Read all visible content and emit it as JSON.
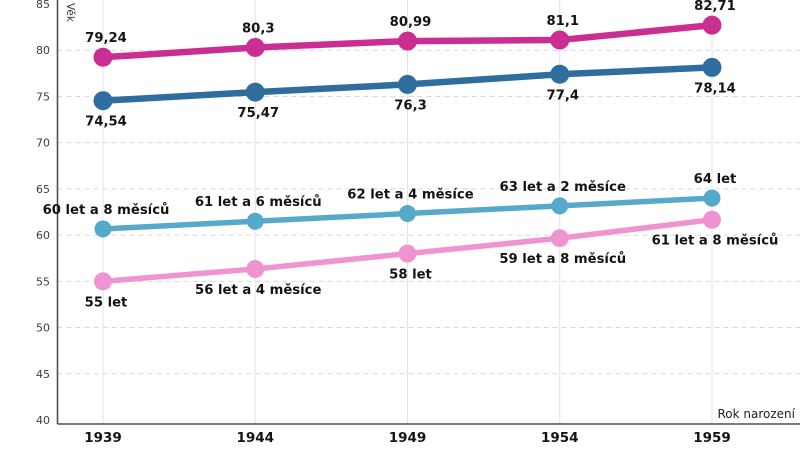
{
  "page": {
    "background_color": "#ffffff"
  },
  "chart_data": {
    "type": "line",
    "title": "",
    "xlabel": "Rok narození",
    "ylabel": "Věk",
    "x_categories": [
      "1939",
      "1944",
      "1949",
      "1954",
      "1959"
    ],
    "x_values": [
      1939,
      1944,
      1949,
      1954,
      1959
    ],
    "yticks": [
      40,
      45,
      50,
      55,
      60,
      65,
      70,
      75,
      80,
      85
    ],
    "ylim": [
      40,
      85.9
    ],
    "grid": {
      "horizontal": "dashed",
      "vertical": "solid"
    },
    "legend_position": "none",
    "series": [
      {
        "id": "magenta",
        "color": "#cb2e92",
        "values": [
          79.24,
          80.3,
          80.99,
          81.1,
          82.71
        ],
        "point_labels": [
          "79,24",
          "80,3",
          "80,99",
          "81,1",
          "82,71"
        ],
        "label_position": "above"
      },
      {
        "id": "blue",
        "color": "#2e6d9e",
        "values": [
          74.54,
          75.47,
          76.3,
          77.4,
          78.14
        ],
        "point_labels": [
          "74,54",
          "75,47",
          "76,3",
          "77,4",
          "78,14"
        ],
        "label_position": "below"
      },
      {
        "id": "light-blue",
        "color": "#56a9cb",
        "values": [
          60.667,
          61.5,
          62.333,
          63.167,
          64
        ],
        "point_labels": [
          "60 let a 8 měsíců",
          "61 let a 6 měsíců",
          "62 let a 4 měsíce",
          "63 let a 2 měsíce",
          "64 let"
        ],
        "label_position": "above"
      },
      {
        "id": "pink",
        "color": "#ef94d1",
        "values": [
          55,
          56.333,
          58,
          59.667,
          61.667
        ],
        "point_labels": [
          "55 let",
          "56 let a 4 měsíce",
          "58 let",
          "59 let a 8 měsíců",
          "61 let a 8 měsíců"
        ],
        "label_position": "below"
      }
    ]
  }
}
